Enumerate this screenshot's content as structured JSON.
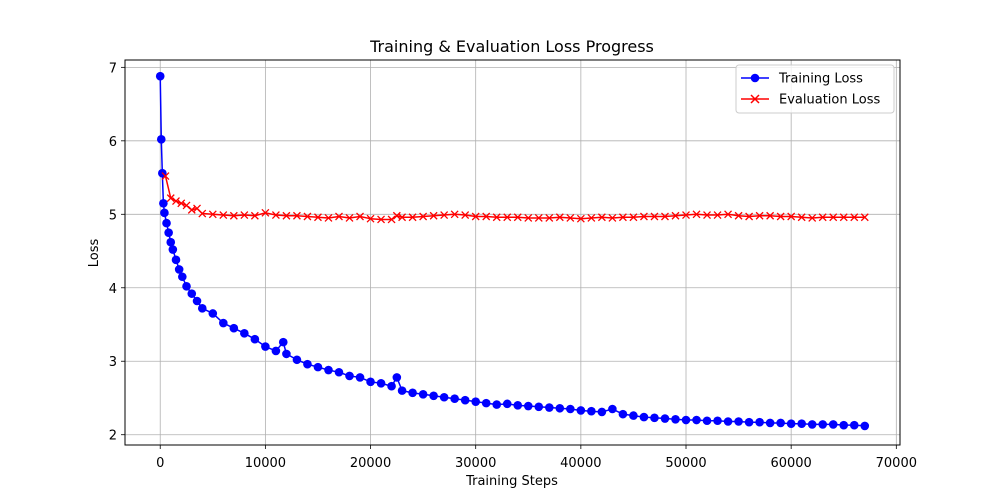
{
  "chart_data": {
    "type": "line",
    "title": "Training & Evaluation Loss Progress",
    "xlabel": "Training Steps",
    "ylabel": "Loss",
    "xlim": [
      -3350,
      70350
    ],
    "ylim": [
      1.86,
      7.1
    ],
    "xticks": [
      0,
      10000,
      20000,
      30000,
      40000,
      50000,
      60000,
      70000
    ],
    "xtick_labels": [
      "0",
      "10000",
      "20000",
      "30000",
      "40000",
      "50000",
      "60000",
      "70000"
    ],
    "yticks": [
      2,
      3,
      4,
      5,
      6,
      7
    ],
    "ytick_labels": [
      "2",
      "3",
      "4",
      "5",
      "6",
      "7"
    ],
    "grid": true,
    "legend_position": "top-right",
    "series": [
      {
        "name": "Training Loss",
        "color": "#0000ff",
        "marker": "circle",
        "x": [
          0,
          100,
          200,
          300,
          400,
          600,
          800,
          1000,
          1200,
          1500,
          1800,
          2100,
          2500,
          3000,
          3500,
          4000,
          5000,
          6000,
          7000,
          8000,
          9000,
          10000,
          11000,
          11700,
          12000,
          13000,
          14000,
          15000,
          16000,
          17000,
          18000,
          19000,
          20000,
          21000,
          22000,
          22500,
          23000,
          24000,
          25000,
          26000,
          27000,
          28000,
          29000,
          30000,
          31000,
          32000,
          33000,
          34000,
          35000,
          36000,
          37000,
          38000,
          39000,
          40000,
          41000,
          42000,
          43000,
          44000,
          45000,
          46000,
          47000,
          48000,
          49000,
          50000,
          51000,
          52000,
          53000,
          54000,
          55000,
          56000,
          57000,
          58000,
          59000,
          60000,
          61000,
          62000,
          63000,
          64000,
          65000,
          66000,
          67000
        ],
        "y": [
          6.88,
          6.02,
          5.56,
          5.15,
          5.02,
          4.88,
          4.75,
          4.62,
          4.52,
          4.38,
          4.25,
          4.15,
          4.02,
          3.92,
          3.82,
          3.72,
          3.65,
          3.52,
          3.45,
          3.38,
          3.3,
          3.2,
          3.14,
          3.26,
          3.1,
          3.02,
          2.96,
          2.92,
          2.88,
          2.85,
          2.8,
          2.78,
          2.72,
          2.7,
          2.66,
          2.78,
          2.6,
          2.57,
          2.55,
          2.53,
          2.51,
          2.49,
          2.47,
          2.45,
          2.43,
          2.41,
          2.42,
          2.4,
          2.39,
          2.38,
          2.37,
          2.36,
          2.35,
          2.33,
          2.32,
          2.31,
          2.35,
          2.28,
          2.26,
          2.24,
          2.23,
          2.22,
          2.21,
          2.2,
          2.2,
          2.19,
          2.19,
          2.18,
          2.18,
          2.17,
          2.17,
          2.16,
          2.16,
          2.15,
          2.15,
          2.14,
          2.14,
          2.14,
          2.13,
          2.13,
          2.12
        ]
      },
      {
        "name": "Evaluation Loss",
        "color": "#ff0000",
        "marker": "x",
        "x": [
          500,
          1000,
          1500,
          2000,
          2500,
          3000,
          3500,
          4000,
          5000,
          6000,
          7000,
          8000,
          9000,
          10000,
          11000,
          12000,
          13000,
          14000,
          15000,
          16000,
          17000,
          18000,
          19000,
          20000,
          21000,
          22000,
          22500,
          23000,
          24000,
          25000,
          26000,
          27000,
          28000,
          29000,
          30000,
          31000,
          32000,
          33000,
          34000,
          35000,
          36000,
          37000,
          38000,
          39000,
          40000,
          41000,
          42000,
          43000,
          44000,
          45000,
          46000,
          47000,
          48000,
          49000,
          50000,
          51000,
          52000,
          53000,
          54000,
          55000,
          56000,
          57000,
          58000,
          59000,
          60000,
          61000,
          62000,
          63000,
          64000,
          65000,
          66000,
          67000
        ],
        "y": [
          5.52,
          5.22,
          5.18,
          5.15,
          5.12,
          5.06,
          5.08,
          5.01,
          5.0,
          4.99,
          4.98,
          4.99,
          4.98,
          5.02,
          4.99,
          4.98,
          4.98,
          4.97,
          4.96,
          4.95,
          4.97,
          4.95,
          4.97,
          4.94,
          4.93,
          4.93,
          4.98,
          4.96,
          4.96,
          4.97,
          4.98,
          4.99,
          5.0,
          4.99,
          4.97,
          4.97,
          4.96,
          4.96,
          4.96,
          4.95,
          4.95,
          4.95,
          4.96,
          4.95,
          4.94,
          4.95,
          4.96,
          4.95,
          4.96,
          4.96,
          4.97,
          4.97,
          4.97,
          4.98,
          4.99,
          5.0,
          4.99,
          4.99,
          5.0,
          4.98,
          4.97,
          4.98,
          4.98,
          4.97,
          4.97,
          4.96,
          4.95,
          4.96,
          4.96,
          4.96,
          4.96,
          4.96
        ]
      }
    ]
  }
}
